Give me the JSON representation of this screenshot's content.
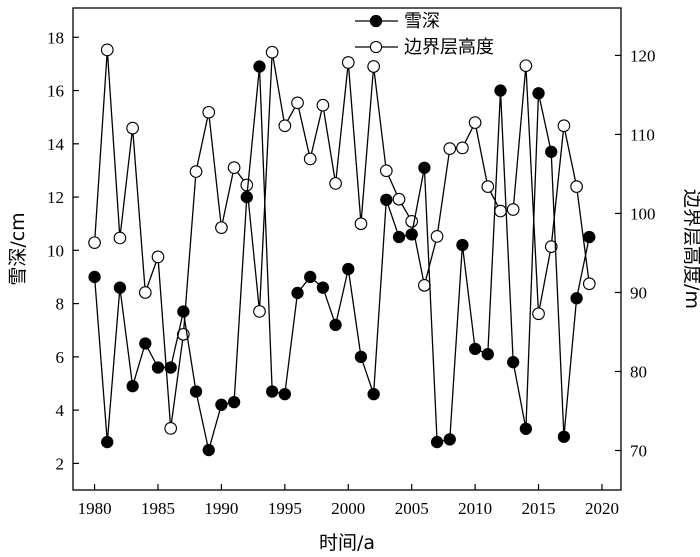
{
  "chart_data": {
    "type": "line",
    "title": "",
    "xlabel": "时间/a",
    "ylabel": "雪深/cm",
    "y2label": "边界层高度/m",
    "xlim": [
      1978.3,
      2021.5
    ],
    "ylim": [
      1,
      19.1
    ],
    "y2lim": [
      65,
      126
    ],
    "x_ticks": [
      1980,
      1985,
      1990,
      1995,
      2000,
      2005,
      2010,
      2015,
      2020
    ],
    "y_ticks": [
      2,
      4,
      6,
      8,
      10,
      12,
      14,
      16,
      18
    ],
    "y2_ticks": [
      70,
      80,
      90,
      100,
      110,
      120
    ],
    "legend_position": "top-center",
    "grid": false,
    "x": [
      1980,
      1981,
      1982,
      1983,
      1984,
      1985,
      1986,
      1987,
      1988,
      1989,
      1990,
      1991,
      1992,
      1993,
      1994,
      1995,
      1996,
      1997,
      1998,
      1999,
      2000,
      2001,
      2002,
      2003,
      2004,
      2005,
      2006,
      2007,
      2008,
      2009,
      2010,
      2011,
      2012,
      2013,
      2014,
      2015,
      2016,
      2017,
      2018,
      2019
    ],
    "series": [
      {
        "name": "雪深",
        "axis": "left",
        "marker": "filled-circle",
        "color": "#000000",
        "values": [
          9.0,
          2.8,
          8.6,
          4.9,
          6.5,
          5.6,
          5.6,
          7.7,
          4.7,
          2.5,
          4.2,
          4.3,
          12.0,
          16.9,
          4.7,
          4.6,
          8.4,
          9.0,
          8.6,
          7.2,
          9.3,
          6.0,
          4.6,
          11.9,
          10.5,
          10.6,
          13.1,
          2.8,
          2.9,
          10.2,
          6.3,
          6.1,
          16.0,
          5.8,
          3.3,
          15.9,
          13.7,
          3.0,
          8.2,
          10.5
        ]
      },
      {
        "name": "边界层高度",
        "axis": "right",
        "marker": "open-circle",
        "color": "#000000",
        "values": [
          96.3,
          120.7,
          96.9,
          110.8,
          90.0,
          94.5,
          72.8,
          84.7,
          105.3,
          112.8,
          98.2,
          105.8,
          103.6,
          87.6,
          120.4,
          111.1,
          114.0,
          106.9,
          113.7,
          103.8,
          119.1,
          98.7,
          118.6,
          105.4,
          101.8,
          99.0,
          90.9,
          97.1,
          108.2,
          108.3,
          111.5,
          103.4,
          100.3,
          100.5,
          118.7,
          87.3,
          95.8,
          111.1,
          103.4,
          91.1
        ]
      }
    ]
  }
}
